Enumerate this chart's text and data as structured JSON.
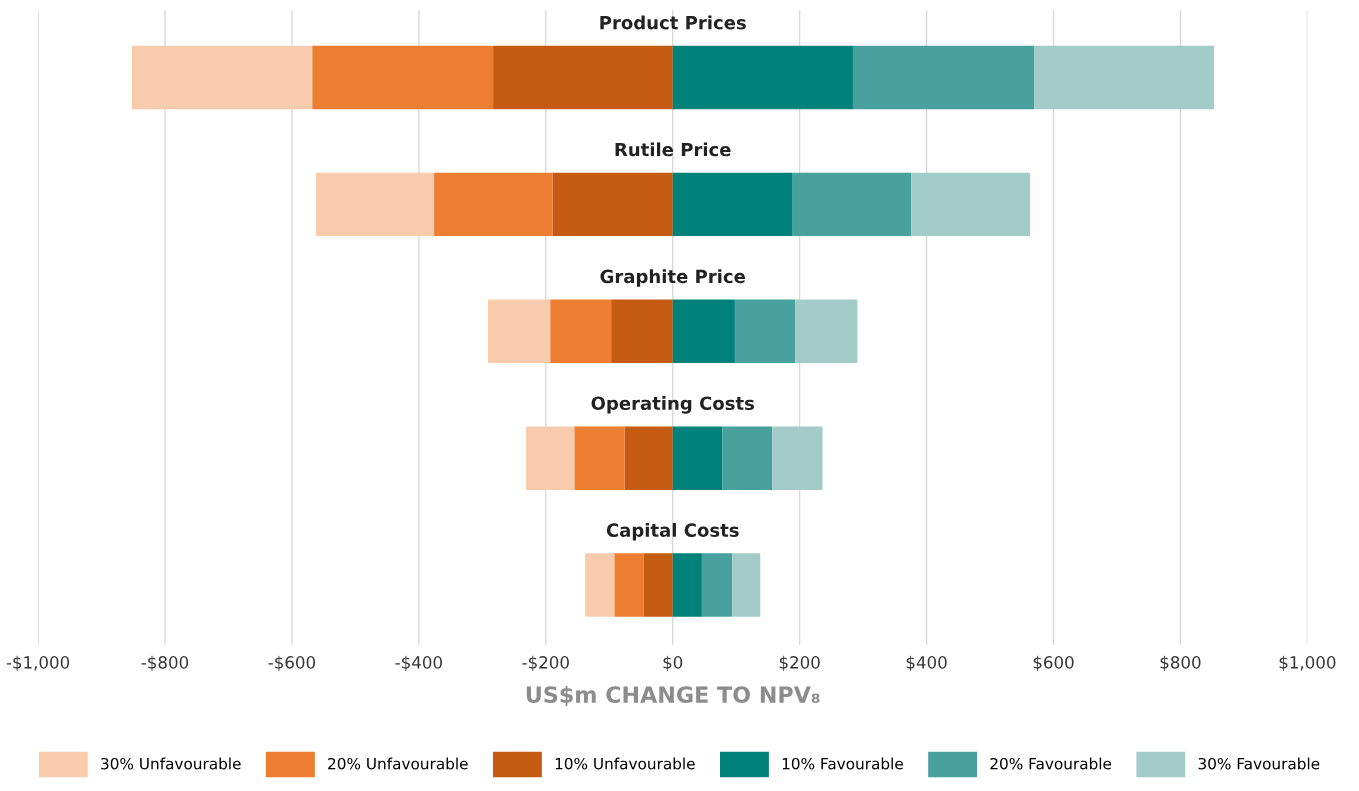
{
  "chart_data": {
    "type": "bar",
    "orientation": "horizontal",
    "stacked": true,
    "categories": [
      "Product Prices",
      "Rutile Price",
      "Graphite Price",
      "Operating Costs",
      "Capital Costs"
    ],
    "series": [
      {
        "name": "10% Unfavourable",
        "color": "#c55a11",
        "values": [
          -283,
          -189,
          -97,
          -76,
          -46
        ]
      },
      {
        "name": "20% Unfavourable",
        "color": "#ed7d31",
        "values": [
          -285,
          -187,
          -96,
          -79,
          -46
        ]
      },
      {
        "name": "30% Unfavourable",
        "color": "#f8cbad",
        "values": [
          -284,
          -186,
          -98,
          -76,
          -46
        ]
      },
      {
        "name": "10% Favourable",
        "color": "#00827a",
        "values": [
          284,
          188,
          98,
          78,
          46
        ]
      },
      {
        "name": "20% Favourable",
        "color": "#48a19d",
        "values": [
          286,
          188,
          95,
          79,
          48
        ]
      },
      {
        "name": "30% Favourable",
        "color": "#a3cbc7",
        "values": [
          283,
          187,
          98,
          79,
          44
        ]
      }
    ],
    "xlim": [
      -1000,
      1000
    ],
    "xticks": [
      {
        "value": -1000,
        "label": "-$1,000"
      },
      {
        "value": -800,
        "label": "-$800"
      },
      {
        "value": -600,
        "label": "-$600"
      },
      {
        "value": -400,
        "label": "-$400"
      },
      {
        "value": -200,
        "label": "-$200"
      },
      {
        "value": 0,
        "label": "$0"
      },
      {
        "value": 200,
        "label": "$200"
      },
      {
        "value": 400,
        "label": "$400"
      },
      {
        "value": 600,
        "label": "$600"
      },
      {
        "value": 800,
        "label": "$800"
      },
      {
        "value": 1000,
        "label": "$1,000"
      }
    ],
    "xlabel": "US$m CHANGE TO NPV₈",
    "grid": "x",
    "legend": "bottom"
  }
}
